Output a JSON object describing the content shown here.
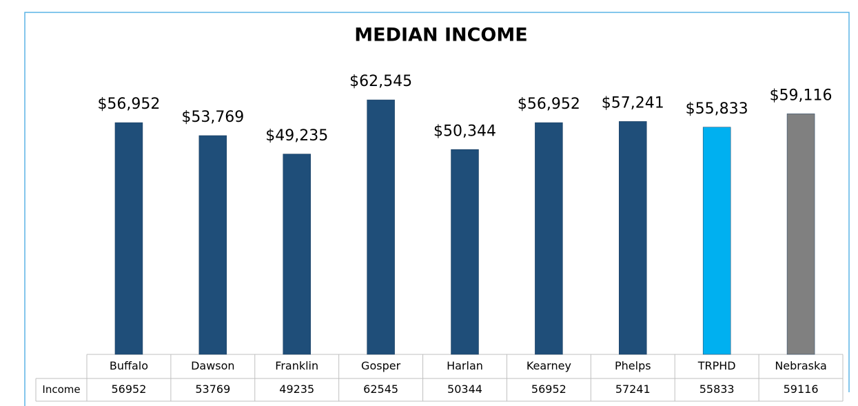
{
  "chart_data": {
    "type": "bar",
    "title": "MEDIAN INCOME",
    "categories": [
      "Buffalo",
      "Dawson",
      "Franklin",
      "Gosper",
      "Harlan",
      "Kearney",
      "Phelps",
      "TRPHD",
      "Nebraska"
    ],
    "series": [
      {
        "name": "Income",
        "values": [
          56952,
          53769,
          49235,
          62545,
          50344,
          56952,
          57241,
          55833,
          59116
        ],
        "value_labels": [
          "$56,952",
          "$53,769",
          "$49,235",
          "$62,545",
          "$50,344",
          "$56,952",
          "$57,241",
          "$55,833",
          "$59,116"
        ],
        "colors": [
          "#1f4e79",
          "#1f4e79",
          "#1f4e79",
          "#1f4e79",
          "#1f4e79",
          "#1f4e79",
          "#1f4e79",
          "#00b0f0",
          "#808080"
        ]
      }
    ],
    "ylim": [
      0,
      70000
    ]
  }
}
